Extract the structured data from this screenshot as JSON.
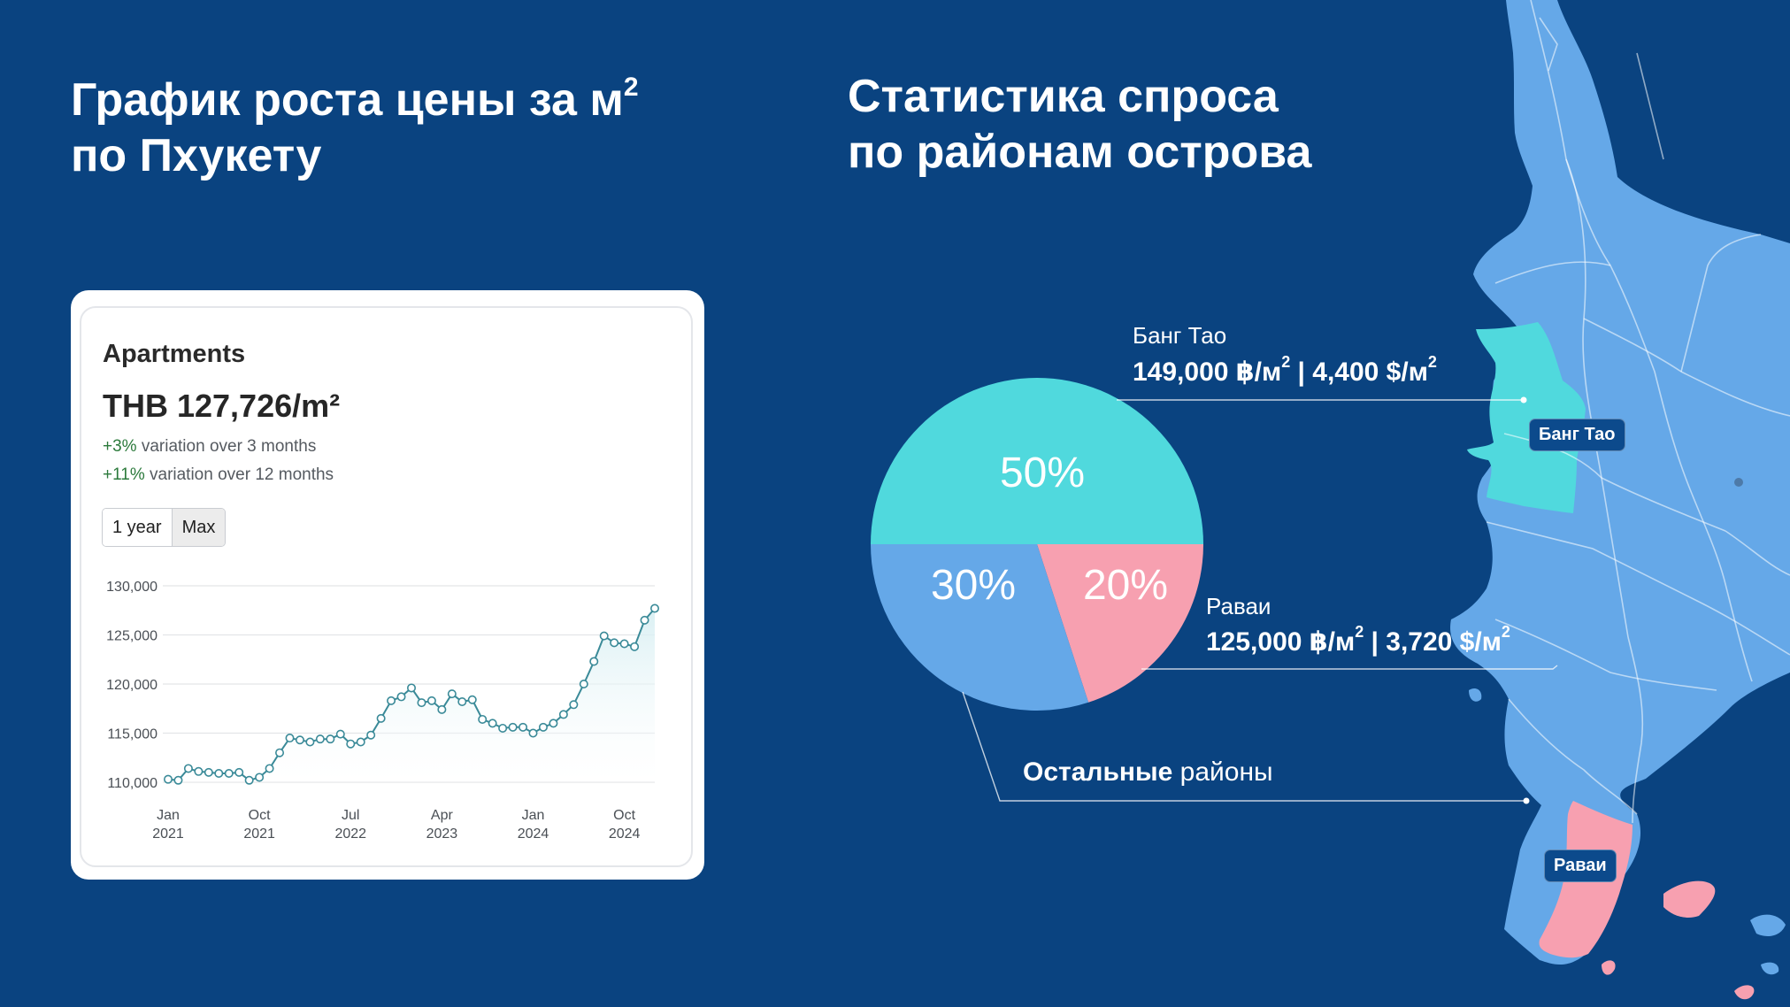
{
  "titles": {
    "left": "График роста цены за м",
    "left_sup": "2",
    "left_line2": "по Пхукету",
    "right_line1": "Статистика спроса",
    "right_line2": "по районам острова"
  },
  "card": {
    "type": "Apartments",
    "price": "THB 127,726/m²",
    "var1_pct": "+3%",
    "var1_text": "variation over 3 months",
    "var2_pct": "+11%",
    "var2_text": "variation over 12 months",
    "range_buttons": [
      "1 year",
      "Max"
    ],
    "active_range": "Max"
  },
  "colors": {
    "background": "#0a4380",
    "teal": "#50d9dd",
    "blue": "#65a8e8",
    "pink": "#f7a0b0",
    "line": "#3a8a98"
  },
  "chart_data": [
    {
      "type": "line",
      "title": "",
      "ylim": [
        110000,
        130000
      ],
      "yticks": [
        "130,000",
        "125,000",
        "120,000",
        "115,000",
        "110,000"
      ],
      "ytick_values": [
        130000,
        125000,
        120000,
        115000,
        110000
      ],
      "xticks": [
        {
          "month": "Jan",
          "year": "2021",
          "index": 0
        },
        {
          "month": "Oct",
          "year": "2021",
          "index": 9
        },
        {
          "month": "Jul",
          "year": "2022",
          "index": 18
        },
        {
          "month": "Apr",
          "year": "2023",
          "index": 27
        },
        {
          "month": "Jan",
          "year": "2024",
          "index": 36
        },
        {
          "month": "Oct",
          "year": "2024",
          "index": 45
        }
      ],
      "x": [
        "2021-01",
        "2021-02",
        "2021-03",
        "2021-04",
        "2021-05",
        "2021-06",
        "2021-07",
        "2021-08",
        "2021-09",
        "2021-10",
        "2021-11",
        "2021-12",
        "2022-01",
        "2022-02",
        "2022-03",
        "2022-04",
        "2022-05",
        "2022-06",
        "2022-07",
        "2022-08",
        "2022-09",
        "2022-10",
        "2022-11",
        "2022-12",
        "2023-01",
        "2023-02",
        "2023-03",
        "2023-04",
        "2023-05",
        "2023-06",
        "2023-07",
        "2023-08",
        "2023-09",
        "2023-10",
        "2023-11",
        "2023-12",
        "2024-01",
        "2024-02",
        "2024-03",
        "2024-04",
        "2024-05",
        "2024-06",
        "2024-07",
        "2024-08",
        "2024-09",
        "2024-10",
        "2024-11",
        "2024-12",
        "2025-01"
      ],
      "values": [
        110300,
        110200,
        111400,
        111100,
        111000,
        110900,
        110900,
        111000,
        110200,
        110500,
        111400,
        113000,
        114500,
        114300,
        114100,
        114400,
        114400,
        114900,
        113900,
        114100,
        114800,
        116500,
        118300,
        118700,
        119600,
        118100,
        118300,
        117400,
        119000,
        118200,
        118400,
        116400,
        116000,
        115500,
        115600,
        115600,
        115000,
        115600,
        116000,
        116900,
        117900,
        120000,
        122300,
        124900,
        124200,
        124100,
        123800,
        126500,
        127700
      ]
    },
    {
      "type": "pie",
      "title": "",
      "slices": [
        {
          "label": "Банг Тао",
          "value": 50,
          "text": "50%"
        },
        {
          "label": "Раваи",
          "value": 20,
          "text": "20%"
        },
        {
          "label": "Остальные районы",
          "value": 30,
          "text": "30%"
        }
      ]
    }
  ],
  "labels": {
    "bang_tao_name": "Банг Тао",
    "bang_tao_price_a": "149,000 ฿/м",
    "bang_tao_price_b": " | 4,400 $/м",
    "rawai_name": "Раваи",
    "rawai_price_a": "125,000 ฿/м",
    "rawai_price_b": " | 3,720 $/м",
    "sup2": "2",
    "others_bold": "Остальные",
    "others_rest": " районы"
  },
  "map": {
    "badge_bang_tao": "Банг Тао",
    "badge_rawai": "Раваи"
  }
}
